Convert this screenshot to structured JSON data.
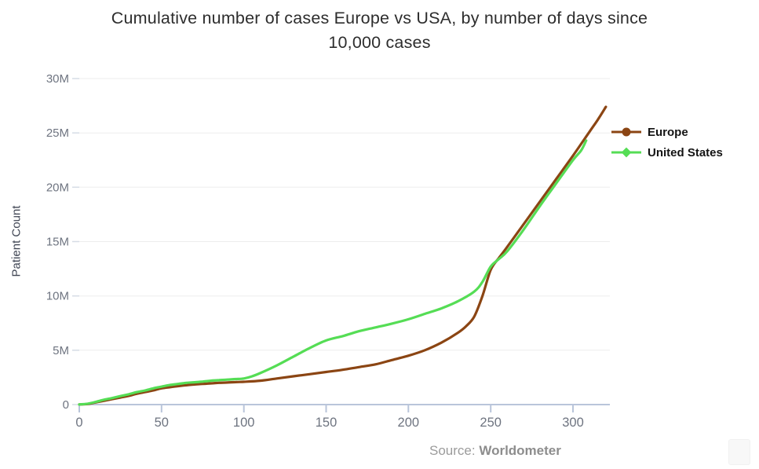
{
  "title": {
    "line1": "Cumulative number of cases Europe vs USA, by number of days since",
    "line2": "10,000 cases"
  },
  "source": {
    "prefix": "Source:",
    "name": "Worldometer"
  },
  "colors": {
    "europe": "#8B4513",
    "united_states": "#55DD55",
    "gridline": "#ededed",
    "axis": "#b9c5da",
    "tick_label": "#6e7480",
    "title_text": "#2d2d2d"
  },
  "chart_data": {
    "type": "line",
    "title": "Cumulative number of cases Europe vs USA, by number of days since 10,000 cases",
    "xlabel": "",
    "ylabel": "Patient Count",
    "y_unit": "millions",
    "xlim": [
      0,
      323
    ],
    "ylim_millions": [
      0,
      30
    ],
    "grid": "horizontal",
    "legend_position": "right-top",
    "x_ticks": [
      {
        "v": 0,
        "label": "0"
      },
      {
        "v": 50,
        "label": "50"
      },
      {
        "v": 100,
        "label": "100"
      },
      {
        "v": 150,
        "label": "150"
      },
      {
        "v": 200,
        "label": "200"
      },
      {
        "v": 250,
        "label": "250"
      },
      {
        "v": 300,
        "label": "300"
      }
    ],
    "y_ticks": [
      {
        "v": 0,
        "label": "0"
      },
      {
        "v": 5,
        "label": "5M"
      },
      {
        "v": 10,
        "label": "10M"
      },
      {
        "v": 15,
        "label": "15M"
      },
      {
        "v": 20,
        "label": "20M"
      },
      {
        "v": 25,
        "label": "25M"
      },
      {
        "v": 30,
        "label": "30M"
      }
    ],
    "series": [
      {
        "name": "Europe",
        "color": "#8B4513",
        "marker": "circle",
        "points_day_vs_millions": [
          [
            0,
            0.01
          ],
          [
            5,
            0.05
          ],
          [
            10,
            0.2
          ],
          [
            15,
            0.35
          ],
          [
            20,
            0.5
          ],
          [
            25,
            0.65
          ],
          [
            30,
            0.8
          ],
          [
            35,
            1.0
          ],
          [
            40,
            1.15
          ],
          [
            45,
            1.3
          ],
          [
            50,
            1.5
          ],
          [
            55,
            1.6
          ],
          [
            60,
            1.7
          ],
          [
            65,
            1.78
          ],
          [
            70,
            1.85
          ],
          [
            75,
            1.9
          ],
          [
            80,
            1.95
          ],
          [
            85,
            2.0
          ],
          [
            90,
            2.03
          ],
          [
            95,
            2.07
          ],
          [
            100,
            2.1
          ],
          [
            110,
            2.2
          ],
          [
            120,
            2.4
          ],
          [
            130,
            2.6
          ],
          [
            140,
            2.8
          ],
          [
            150,
            3.0
          ],
          [
            160,
            3.2
          ],
          [
            170,
            3.45
          ],
          [
            180,
            3.7
          ],
          [
            190,
            4.1
          ],
          [
            200,
            4.5
          ],
          [
            210,
            5.0
          ],
          [
            220,
            5.7
          ],
          [
            230,
            6.6
          ],
          [
            235,
            7.2
          ],
          [
            240,
            8.1
          ],
          [
            245,
            10.0
          ],
          [
            250,
            12.4
          ],
          [
            255,
            13.5
          ],
          [
            260,
            14.5
          ],
          [
            270,
            16.6
          ],
          [
            280,
            18.7
          ],
          [
            290,
            20.8
          ],
          [
            300,
            22.9
          ],
          [
            310,
            25.1
          ],
          [
            315,
            26.2
          ],
          [
            320,
            27.4
          ]
        ]
      },
      {
        "name": "United States",
        "color": "#55DD55",
        "marker": "diamond",
        "points_day_vs_millions": [
          [
            0,
            0.01
          ],
          [
            5,
            0.08
          ],
          [
            10,
            0.25
          ],
          [
            15,
            0.45
          ],
          [
            20,
            0.6
          ],
          [
            25,
            0.78
          ],
          [
            30,
            0.95
          ],
          [
            35,
            1.15
          ],
          [
            40,
            1.3
          ],
          [
            45,
            1.5
          ],
          [
            50,
            1.65
          ],
          [
            55,
            1.8
          ],
          [
            60,
            1.9
          ],
          [
            65,
            2.0
          ],
          [
            70,
            2.05
          ],
          [
            75,
            2.12
          ],
          [
            80,
            2.2
          ],
          [
            85,
            2.25
          ],
          [
            90,
            2.3
          ],
          [
            95,
            2.35
          ],
          [
            100,
            2.4
          ],
          [
            105,
            2.6
          ],
          [
            110,
            2.9
          ],
          [
            120,
            3.6
          ],
          [
            130,
            4.4
          ],
          [
            140,
            5.2
          ],
          [
            150,
            5.9
          ],
          [
            160,
            6.3
          ],
          [
            170,
            6.75
          ],
          [
            180,
            7.1
          ],
          [
            190,
            7.45
          ],
          [
            200,
            7.85
          ],
          [
            210,
            8.35
          ],
          [
            220,
            8.85
          ],
          [
            230,
            9.5
          ],
          [
            240,
            10.4
          ],
          [
            245,
            11.3
          ],
          [
            250,
            12.7
          ],
          [
            255,
            13.4
          ],
          [
            260,
            14.1
          ],
          [
            270,
            16.1
          ],
          [
            280,
            18.3
          ],
          [
            290,
            20.4
          ],
          [
            300,
            22.5
          ],
          [
            305,
            23.4
          ],
          [
            308,
            24.3
          ]
        ]
      }
    ]
  }
}
